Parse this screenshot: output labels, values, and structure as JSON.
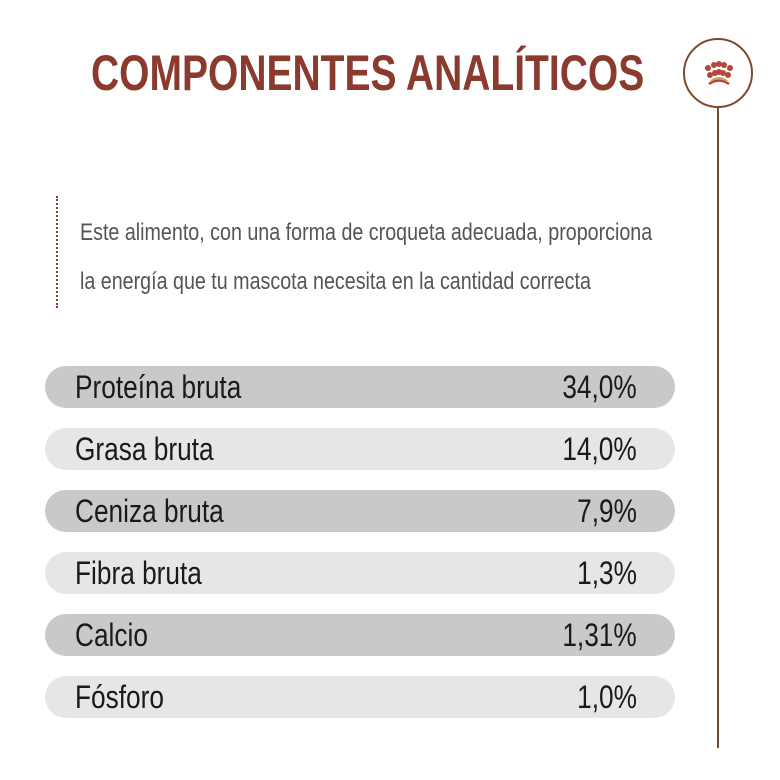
{
  "title": "COMPONENTES ANALÍTICOS",
  "description": [
    "Este alimento, con una forma de croqueta adecuada, proporciona",
    "la energía que tu mascota necesita en la cantidad correcta"
  ],
  "logo_icon": "crown-icon",
  "colors": {
    "title": "#8b3a2e",
    "row_dark": "#c9c9c9",
    "row_light": "#e6e6e6",
    "line": "#7a4a2e"
  },
  "components": [
    {
      "label": "Proteína bruta",
      "value": "34,0%"
    },
    {
      "label": "Grasa bruta",
      "value": "14,0%"
    },
    {
      "label": "Ceniza bruta",
      "value": "7,9%"
    },
    {
      "label": "Fibra bruta",
      "value": "1,3%"
    },
    {
      "label": "Calcio",
      "value": "1,31%"
    },
    {
      "label": "Fósforo",
      "value": "1,0%"
    }
  ]
}
